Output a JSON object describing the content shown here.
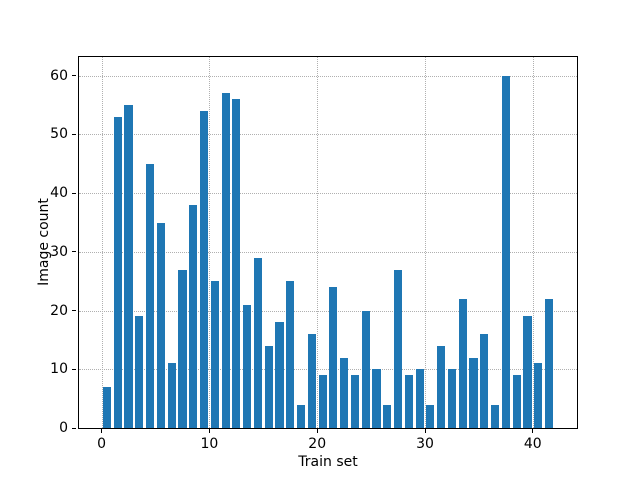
{
  "chart_data": {
    "type": "bar",
    "title": "",
    "xlabel": "Train set",
    "ylabel": "Image count",
    "values": [
      7,
      53,
      55,
      19,
      45,
      35,
      11,
      27,
      38,
      54,
      25,
      57,
      56,
      21,
      29,
      14,
      18,
      25,
      4,
      16,
      9,
      24,
      12,
      9,
      20,
      10,
      4,
      27,
      9,
      10,
      4,
      14,
      10,
      22,
      12,
      16,
      4,
      60,
      9,
      19,
      11,
      22
    ],
    "bar_x_start": 0.5,
    "bar_x_step": 1,
    "bar_width_units": 0.76,
    "xticks": [
      0,
      10,
      20,
      30,
      40
    ],
    "yticks": [
      0,
      10,
      20,
      30,
      40,
      50,
      60
    ],
    "xlim": [
      -2.1,
      44.1
    ],
    "ylim": [
      0,
      63.2
    ],
    "bar_color": "#1f77b4",
    "grid_color": "#b0b0b0",
    "grid_style": "dotted",
    "grid_axes": "both",
    "grid_below_bars": true,
    "axis_color": "#000000",
    "legend": "none"
  }
}
